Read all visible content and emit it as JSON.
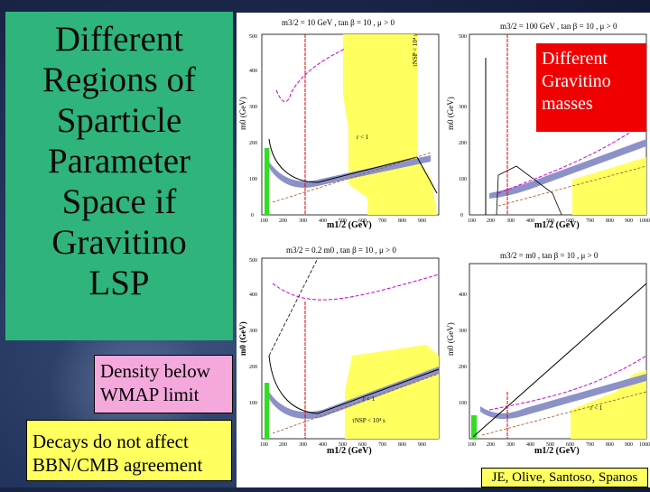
{
  "slide": {
    "title_lines": [
      "Different",
      "Regions of",
      "Sparticle",
      "Parameter",
      "Space if",
      "Gravitino",
      "LSP"
    ],
    "density_lines": [
      "Density below",
      "WMAP limit"
    ],
    "decays_lines": [
      "Decays do not affect",
      "BBN/CMB agreement"
    ],
    "gravitino_lines": [
      "Different",
      "Gravitino",
      "masses"
    ],
    "credit": "JE, Olive, Santoso, Spanos"
  },
  "plots": {
    "tl": {
      "header": "m3/2 = 10 GeV , tan β = 10 , μ > 0",
      "ylabel": "m0 (GeV)",
      "xlabel": "m1/2 (GeV)",
      "label_r": "r < 1",
      "label_tau": "τNSP < 10⁴ s"
    },
    "tr": {
      "header": "m3/2 = 100 GeV , tan β = 10 , μ > 0",
      "ylabel": "m0 (GeV)",
      "xlabel": "m1/2 (GeV)"
    },
    "bl": {
      "header": "m3/2 = 0.2 m0 , tan β = 10 , μ > 0",
      "ylabel": "m0 (GeV)",
      "xlabel": "m1/2 (GeV)",
      "label_r": "r < 1",
      "label_tau": "τNSP < 10⁴ s"
    },
    "br": {
      "header": "m3/2 = m0 , tan β = 10 , μ > 0",
      "ylabel": "m0 (GeV)",
      "xlabel": "m1/2 (GeV)",
      "label_r": "r < 1"
    },
    "x_ticks": [
      "100",
      "200",
      "300",
      "400",
      "500",
      "600",
      "700",
      "800",
      "900",
      "1000"
    ],
    "y_ticks": [
      "0",
      "100",
      "200",
      "300",
      "400",
      "500"
    ]
  },
  "colors": {
    "title_bg": "#2fb57b",
    "density_bg": "#f4a8dc",
    "yellow": "#ffff60",
    "gravitino_bg": "#f00000",
    "allowed_band": "#8c92c8"
  }
}
